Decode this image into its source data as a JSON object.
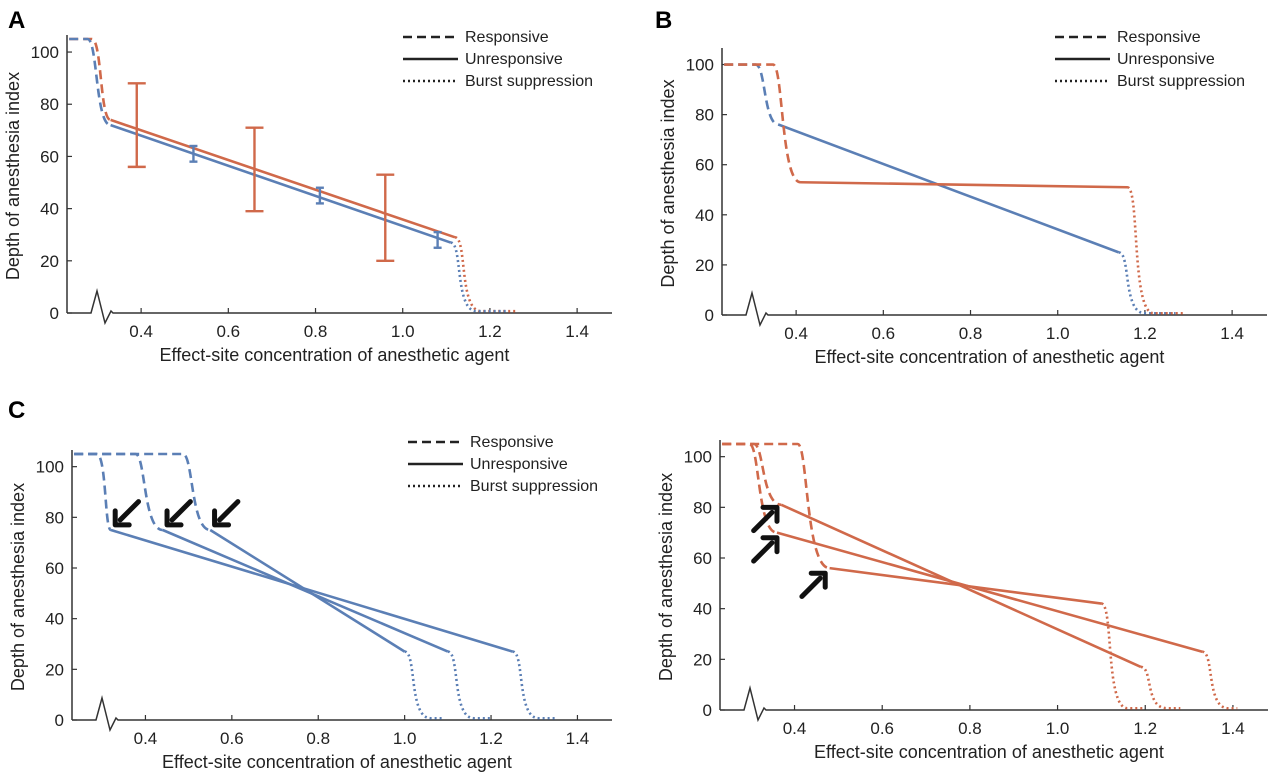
{
  "colors": {
    "blue": "#5b7fb5",
    "orange": "#d0694a",
    "axis": "#333333"
  },
  "chart_data": [
    {
      "id": "A",
      "type": "line",
      "panel_label": "A",
      "xlabel": "Effect-site concentration of anesthetic agent",
      "ylabel": "Depth of anesthesia index",
      "xticks": [
        "0.4",
        "0.6",
        "0.8",
        "1.0",
        "1.2",
        "1.4"
      ],
      "yticks": [
        "0",
        "20",
        "40",
        "60",
        "80",
        "100"
      ],
      "xlim": [
        0.23,
        1.48
      ],
      "ylim": [
        0,
        105
      ],
      "legend": [
        "Responsive",
        "Unresponsive",
        "Burst suppression"
      ],
      "legend_position": "top-right",
      "curves": [
        {
          "color": "orange",
          "top": 105,
          "x_resp_end": 0.31,
          "x_unresp_start": 0.33,
          "y_unresp_start": 74,
          "x_unresp_end": 1.12,
          "y_unresp_end": 29,
          "x_burst_end": 1.26
        },
        {
          "color": "blue",
          "top": 105,
          "x_resp_end": 0.3,
          "x_unresp_start": 0.33,
          "y_unresp_start": 72,
          "x_unresp_end": 1.11,
          "y_unresp_end": 27,
          "x_burst_end": 1.24
        }
      ],
      "error_bars": [
        {
          "color": "orange",
          "x": 0.39,
          "low": 56,
          "high": 88
        },
        {
          "color": "blue",
          "x": 0.52,
          "low": 58,
          "high": 64
        },
        {
          "color": "orange",
          "x": 0.66,
          "low": 39,
          "high": 71
        },
        {
          "color": "blue",
          "x": 0.81,
          "low": 42,
          "high": 48
        },
        {
          "color": "orange",
          "x": 0.96,
          "low": 20,
          "high": 53
        },
        {
          "color": "blue",
          "x": 1.08,
          "low": 25,
          "high": 31
        }
      ]
    },
    {
      "id": "B",
      "type": "line",
      "panel_label": "B",
      "xlabel": "Effect-site concentration of anesthetic agent",
      "ylabel": "Depth of anesthesia index",
      "xticks": [
        "0.4",
        "0.6",
        "0.8",
        "1.0",
        "1.2",
        "1.4"
      ],
      "yticks": [
        "0",
        "20",
        "40",
        "60",
        "80",
        "100"
      ],
      "xlim": [
        0.23,
        1.48
      ],
      "ylim": [
        0,
        105
      ],
      "legend": [
        "Responsive",
        "Unresponsive",
        "Burst suppression"
      ],
      "legend_position": "top-right",
      "curves": [
        {
          "color": "blue",
          "top": 100,
          "x_resp_end": 0.33,
          "x_unresp_start": 0.36,
          "y_unresp_start": 76,
          "x_unresp_end": 1.14,
          "y_unresp_end": 25,
          "x_burst_end": 1.27
        },
        {
          "color": "orange",
          "top": 100,
          "x_resp_end": 0.37,
          "x_unresp_start": 0.41,
          "y_unresp_start": 53,
          "x_unresp_end": 1.16,
          "y_unresp_end": 51,
          "x_burst_end": 1.29
        }
      ],
      "error_bars": []
    },
    {
      "id": "C",
      "type": "line",
      "panel_label": "C",
      "xlabel": "Effect-site concentration of anesthetic agent",
      "ylabel": "Depth of anesthesia index",
      "xticks": [
        "0.4",
        "0.6",
        "0.8",
        "1.0",
        "1.2",
        "1.4"
      ],
      "yticks": [
        "0",
        "20",
        "40",
        "60",
        "80",
        "100"
      ],
      "xlim": [
        0.23,
        1.48
      ],
      "ylim": [
        0,
        105
      ],
      "legend": [
        "Responsive",
        "Unresponsive",
        "Burst suppression"
      ],
      "legend_position": "top-right",
      "curves": [
        {
          "color": "blue",
          "top": 105,
          "x_resp_end": 0.31,
          "x_unresp_start": 0.32,
          "y_unresp_start": 75,
          "x_unresp_end": 1.25,
          "y_unresp_end": 27,
          "x_burst_end": 1.35
        },
        {
          "color": "blue",
          "top": 105,
          "x_resp_end": 0.4,
          "x_unresp_start": 0.44,
          "y_unresp_start": 75,
          "x_unresp_end": 1.1,
          "y_unresp_end": 27,
          "x_burst_end": 1.2
        },
        {
          "color": "blue",
          "top": 105,
          "x_resp_end": 0.51,
          "x_unresp_start": 0.55,
          "y_unresp_start": 75,
          "x_unresp_end": 1.0,
          "y_unresp_end": 27,
          "x_burst_end": 1.09
        }
      ],
      "error_bars": [],
      "arrows": [
        {
          "x": 0.33,
          "y": 77,
          "dir": "down-left"
        },
        {
          "x": 0.45,
          "y": 77,
          "dir": "down-left"
        },
        {
          "x": 0.56,
          "y": 77,
          "dir": "down-left"
        }
      ]
    },
    {
      "id": "D",
      "type": "line",
      "panel_label": "",
      "xlabel": "Effect-site concentration of anesthetic agent",
      "ylabel": "Depth of anesthesia index",
      "xticks": [
        "0.4",
        "0.6",
        "0.8",
        "1.0",
        "1.2",
        "1.4"
      ],
      "yticks": [
        "0",
        "20",
        "40",
        "60",
        "80",
        "100"
      ],
      "xlim": [
        0.23,
        1.48
      ],
      "ylim": [
        0,
        105
      ],
      "legend": [],
      "curves": [
        {
          "color": "orange",
          "top": 105,
          "x_resp_end": 0.33,
          "x_unresp_start": 0.37,
          "y_unresp_start": 81,
          "x_unresp_end": 1.19,
          "y_unresp_end": 17,
          "x_burst_end": 1.28
        },
        {
          "color": "orange",
          "top": 105,
          "x_resp_end": 0.32,
          "x_unresp_start": 0.36,
          "y_unresp_start": 70,
          "x_unresp_end": 1.33,
          "y_unresp_end": 23,
          "x_burst_end": 1.41
        },
        {
          "color": "orange",
          "top": 105,
          "x_resp_end": 0.43,
          "x_unresp_start": 0.48,
          "y_unresp_start": 56,
          "x_unresp_end": 1.1,
          "y_unresp_end": 42,
          "x_burst_end": 1.2
        }
      ],
      "error_bars": [],
      "arrows": [
        {
          "x": 0.36,
          "y": 80,
          "dir": "up-right"
        },
        {
          "x": 0.36,
          "y": 68,
          "dir": "up-right"
        },
        {
          "x": 0.47,
          "y": 54,
          "dir": "up-right"
        }
      ]
    }
  ]
}
